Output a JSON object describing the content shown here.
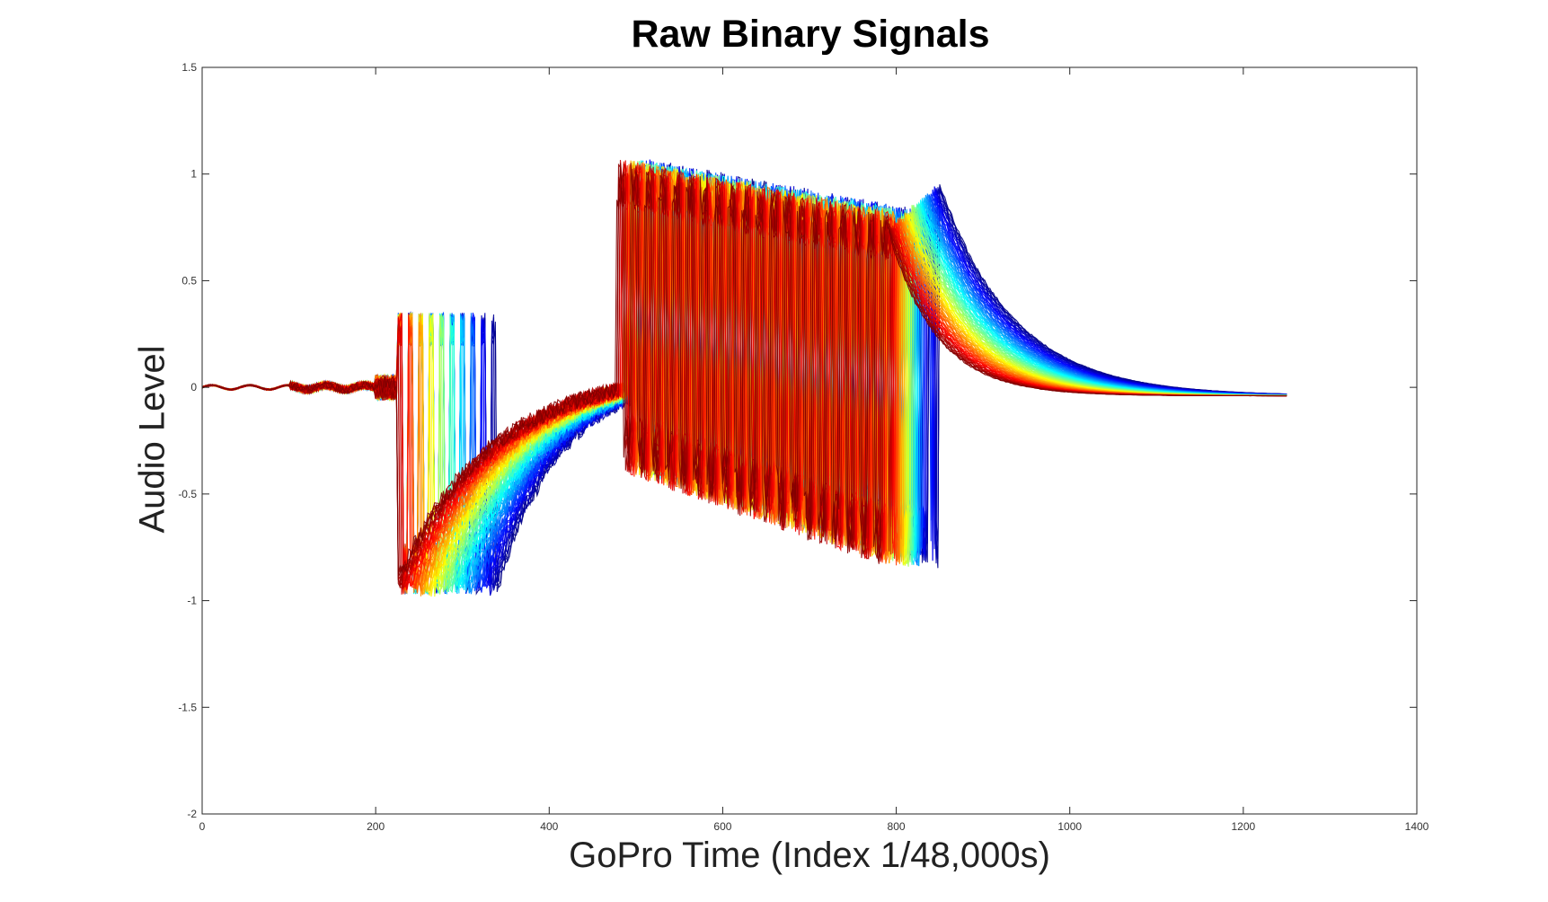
{
  "chart_data": {
    "type": "line",
    "title": "Raw Binary Signals",
    "xlabel": "GoPro Time (Index 1/48,000s)",
    "ylabel": "Audio Level",
    "xlim": [
      0,
      1400
    ],
    "ylim": [
      -2,
      1.5
    ],
    "xticks": [
      0,
      200,
      400,
      600,
      800,
      1000,
      1200,
      1400
    ],
    "yticks": [
      1.5,
      1,
      0.5,
      0,
      -0.5,
      -1,
      -1.5,
      -2
    ],
    "xtick_labels": [
      "0",
      "200",
      "400",
      "600",
      "800",
      "1000",
      "1200",
      "1400"
    ],
    "ytick_labels": [
      "1.5",
      "1",
      "0.5",
      "0",
      "-0.5",
      "-1",
      "-1.5",
      "-2"
    ],
    "grid": false,
    "legend": "none",
    "colormap": "jet",
    "series_count": 100,
    "series_x_end": 1250,
    "representative_envelope": {
      "x": [
        0,
        100,
        200,
        222,
        240,
        270,
        300,
        330,
        345,
        380,
        420,
        460,
        490,
        500,
        520,
        560,
        600,
        650,
        700,
        750,
        800,
        840,
        880,
        920,
        960,
        1000,
        1100,
        1200,
        1250
      ],
      "y_max": [
        0.0,
        0.05,
        0.08,
        0.2,
        0.33,
        0.4,
        0.38,
        0.33,
        0.2,
        -0.3,
        -0.12,
        0.02,
        0.06,
        1.1,
        1.25,
        1.15,
        1.05,
        1.0,
        0.95,
        0.9,
        0.95,
        0.9,
        0.75,
        0.45,
        0.25,
        0.12,
        0.0,
        -0.02,
        -0.03
      ],
      "y_min": [
        0.0,
        -0.05,
        -0.08,
        -0.98,
        -1.05,
        -1.1,
        -1.05,
        -0.95,
        -0.88,
        -0.75,
        -0.45,
        -0.25,
        -0.2,
        -0.3,
        -0.35,
        -0.45,
        -0.6,
        -0.75,
        -0.85,
        -0.85,
        -0.75,
        -0.5,
        -0.1,
        -0.05,
        -0.03,
        -0.03,
        -0.04,
        -0.05,
        -0.05
      ]
    },
    "series_colors": [
      "#00008f",
      "#0000ff",
      "#0080ff",
      "#00ffff",
      "#80ff80",
      "#ffff00",
      "#ff8000",
      "#ff0000",
      "#800000"
    ]
  }
}
